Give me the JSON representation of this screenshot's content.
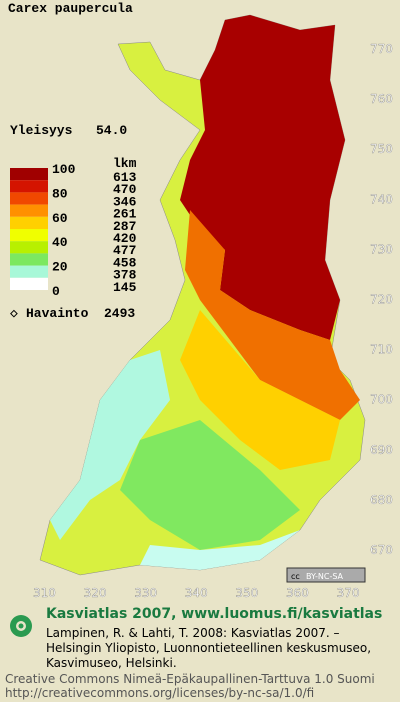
{
  "title": "Carex paupercula",
  "frequency": {
    "label": "Yleisyys",
    "value": "54.0"
  },
  "legend": {
    "scale": [
      "100",
      "80",
      "60",
      "40",
      "20",
      "0"
    ],
    "count_header": "lkm",
    "counts": [
      "613",
      "470",
      "346",
      "261",
      "287",
      "420",
      "477",
      "458",
      "378",
      "145"
    ],
    "colors": [
      "#a00000",
      "#d41400",
      "#f04800",
      "#ff9000",
      "#ffd000",
      "#f0ff00",
      "#b8f000",
      "#7ce860",
      "#a8f8d8",
      "#ffffff"
    ]
  },
  "observations": {
    "label": "Havainto",
    "value": "2493"
  },
  "map": {
    "y_labels": [
      "770",
      "760",
      "750",
      "740",
      "730",
      "720",
      "710",
      "700",
      "690",
      "680",
      "670"
    ],
    "x_labels": [
      "310",
      "320",
      "330",
      "340",
      "350",
      "360",
      "370"
    ],
    "badge": "BY-NC-SA"
  },
  "footer": {
    "site": "Kasviatlas 2007, www.luomus.fi/kasviatlas",
    "citation": [
      "Lampinen, R. & Lahti, T. 2008: Kasviatlas 2007. –",
      "Helsingin Yliopisto, Luonnontieteellinen keskusmuseo,",
      "Kasvimuseo, Helsinki."
    ],
    "license": [
      "Creative Commons Nimeä-Epäkaupallinen-Tarttuva 1.0 Suomi",
      "http://creativecommons.org/licenses/by-nc-sa/1.0/fi"
    ]
  }
}
